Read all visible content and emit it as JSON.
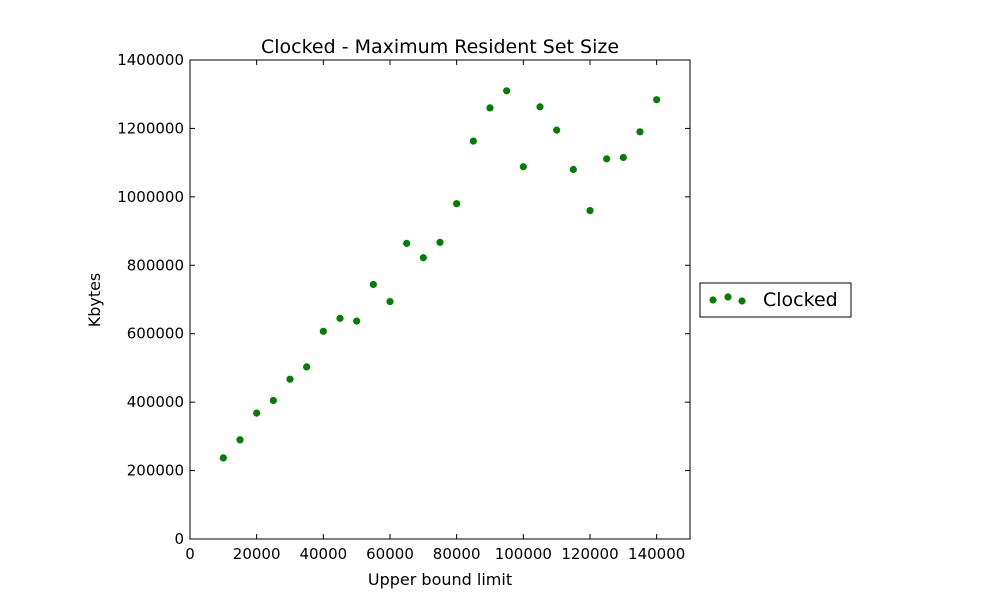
{
  "chart_data": {
    "type": "scatter",
    "title": "Clocked - Maximum Resident Set Size",
    "xlabel": "Upper bound limit",
    "ylabel": "Kbytes",
    "xlim": [
      0,
      150000
    ],
    "ylim": [
      0,
      1400000
    ],
    "xticks": [
      0,
      20000,
      40000,
      60000,
      80000,
      100000,
      120000,
      140000
    ],
    "yticks": [
      0,
      200000,
      400000,
      600000,
      800000,
      1000000,
      1200000,
      1400000
    ],
    "grid": false,
    "legend_position": "outside right",
    "series": [
      {
        "name": "Clocked",
        "color": "#008000",
        "x": [
          10000,
          15000,
          20000,
          25000,
          30000,
          35000,
          40000,
          45000,
          50000,
          55000,
          60000,
          65000,
          70000,
          75000,
          80000,
          85000,
          90000,
          95000,
          100000,
          105000,
          110000,
          115000,
          120000,
          125000,
          130000,
          135000,
          140000
        ],
        "y": [
          237000,
          290000,
          368000,
          405000,
          467000,
          503000,
          607000,
          645000,
          637000,
          744000,
          694000,
          864000,
          822000,
          867000,
          980000,
          1163000,
          1260000,
          1310000,
          1088000,
          1263000,
          1195000,
          1080000,
          960000,
          1111000,
          1115000,
          1190000,
          1284000
        ]
      }
    ]
  }
}
